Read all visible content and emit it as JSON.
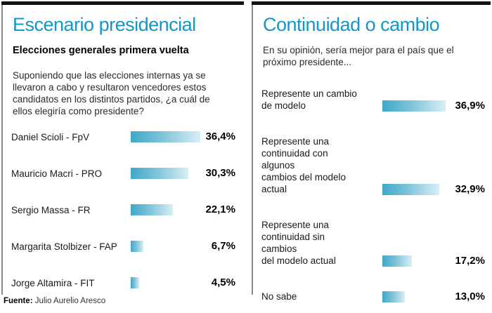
{
  "colors": {
    "accent": "#1497c6",
    "bar_start": "#3fa8c8",
    "bar_end": "#d9eef5",
    "top_bar": "#111111",
    "divider": "#8a8a8a"
  },
  "left_panel": {
    "title": "Escenario presidencial",
    "subtitle": "Elecciones generales primera vuelta",
    "question": "Suponiendo que las elecciones internas ya se\nllevaron a cabo y resultaron vencedores estos\ncandidatos en los distintos partidos, ¿a cuál de\nellos elegiría como presidente?"
  },
  "right_panel": {
    "title": "Continuidad o cambio",
    "question": "En su opinión, sería mejor para el país que el\npróximo presidente..."
  },
  "footer": {
    "source_label": "Fuente:",
    "source_text": " Julio Aurelio Aresco"
  },
  "chart_data": [
    {
      "type": "bar",
      "orientation": "horizontal",
      "title": "Escenario presidencial",
      "subtitle": "Elecciones generales primera vuelta",
      "categories": [
        "Daniel Scioli - FpV",
        "Mauricio Macri - PRO",
        "Sergio Massa - FR",
        "Margarita Stolbizer - FAP",
        "Jorge Altamira - FIT"
      ],
      "values": [
        36.4,
        30.3,
        22.1,
        6.7,
        4.5
      ],
      "value_labels": [
        "36,4%",
        "30,3%",
        "22,1%",
        "6,7%",
        "4,5%"
      ],
      "xlim": [
        0,
        40
      ],
      "grid": false,
      "legend": false
    },
    {
      "type": "bar",
      "orientation": "horizontal",
      "title": "Continuidad o cambio",
      "categories": [
        "Represente un cambio\nde modelo",
        "Represente una\ncontinuidad con algunos\ncambios del modelo\nactual",
        "Represente una\ncontinuidad sin cambios\ndel modelo actual",
        "No sabe"
      ],
      "values": [
        36.9,
        32.9,
        17.2,
        13.0
      ],
      "value_labels": [
        "36,9%",
        "32,9%",
        "17,2%",
        "13,0%"
      ],
      "xlim": [
        0,
        40
      ],
      "grid": false,
      "legend": false
    }
  ]
}
